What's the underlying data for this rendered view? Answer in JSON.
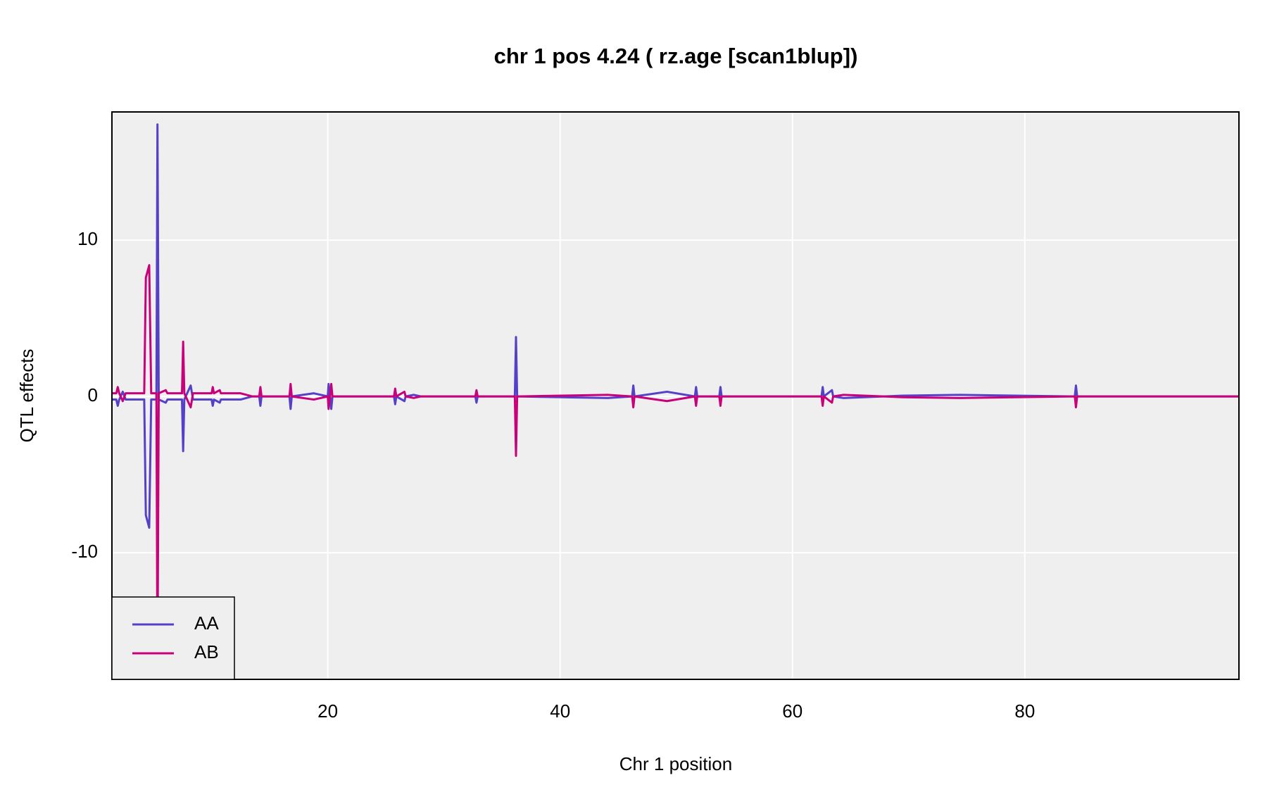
{
  "chart_data": {
    "type": "line",
    "title": "chr 1 pos 4.24 ( rz.age  [scan1blup])",
    "xlabel": "Chr 1 position",
    "ylabel": "QTL effects",
    "x": [
      1.42,
      1.8,
      1.92,
      2.05,
      2.35,
      2.6,
      4.2,
      4.34,
      4.63,
      4.8,
      5.25,
      5.34,
      5.45,
      6.05,
      6.2,
      7.45,
      7.55,
      7.65,
      8.2,
      8.4,
      10.0,
      10.1,
      10.2,
      10.7,
      10.8,
      12.5,
      13.5,
      14.1,
      14.2,
      14.3,
      16.7,
      16.8,
      16.9,
      18.8,
      20.0,
      20.07,
      20.3,
      20.4,
      25.7,
      25.8,
      25.9,
      26.6,
      26.7,
      27.4,
      28.0,
      32.7,
      32.8,
      32.9,
      36.1,
      36.2,
      36.3,
      44.1,
      46.2,
      46.3,
      46.4,
      49.2,
      51.6,
      51.7,
      51.8,
      53.7,
      53.8,
      53.9,
      62.5,
      62.6,
      62.7,
      63.4,
      63.5,
      64.4,
      69.5,
      74.4,
      84.3,
      84.4,
      84.5,
      98.43
    ],
    "series": [
      {
        "name": "AA",
        "color": "#5540c8",
        "values": [
          -0.2,
          -0.2,
          -0.6,
          -0.2,
          0.3,
          -0.2,
          -0.2,
          -7.6,
          -8.4,
          -0.2,
          -0.2,
          17.4,
          -0.2,
          -0.4,
          -0.2,
          -0.2,
          -3.5,
          -0.2,
          0.7,
          -0.2,
          -0.2,
          -0.6,
          -0.2,
          -0.4,
          -0.2,
          -0.2,
          0,
          0,
          -0.6,
          0,
          0,
          -0.8,
          0,
          0.2,
          0,
          0.8,
          -0.8,
          0,
          0,
          -0.5,
          0,
          -0.3,
          0,
          0.1,
          0,
          0,
          -0.4,
          0,
          0,
          3.8,
          0,
          -0.1,
          0,
          0.7,
          0,
          0.3,
          0,
          0.6,
          0,
          0,
          0.6,
          0,
          0,
          0.6,
          0,
          0.4,
          0,
          -0.1,
          0.05,
          0.1,
          0,
          0.7,
          0,
          0
        ]
      },
      {
        "name": "AB",
        "color": "#c8007a",
        "values": [
          0.2,
          0.2,
          0.6,
          0.2,
          -0.3,
          0.2,
          0.2,
          7.6,
          8.4,
          0.2,
          0.2,
          -17.4,
          0.2,
          0.4,
          0.2,
          0.2,
          3.5,
          0.2,
          -0.7,
          0.2,
          0.2,
          0.6,
          0.2,
          0.4,
          0.2,
          0.2,
          0,
          0,
          0.6,
          0,
          0,
          0.8,
          0,
          -0.2,
          0,
          -0.8,
          0.8,
          0,
          0,
          0.5,
          0,
          0.3,
          0,
          -0.1,
          0,
          0,
          0.4,
          0,
          0,
          -3.8,
          0,
          0.1,
          0,
          -0.7,
          0,
          -0.3,
          0,
          -0.6,
          0,
          0,
          -0.6,
          0,
          0,
          -0.6,
          0,
          -0.4,
          0,
          0.1,
          -0.05,
          -0.1,
          0,
          -0.7,
          0,
          0
        ]
      }
    ],
    "xlim": [
      1.42,
      98.43
    ],
    "xticks": [
      20,
      40,
      60,
      80
    ],
    "ylim": [
      -18.1,
      18.2
    ],
    "yticks": [
      -10,
      0,
      10
    ],
    "grid": true,
    "legend": "bottom-left"
  }
}
